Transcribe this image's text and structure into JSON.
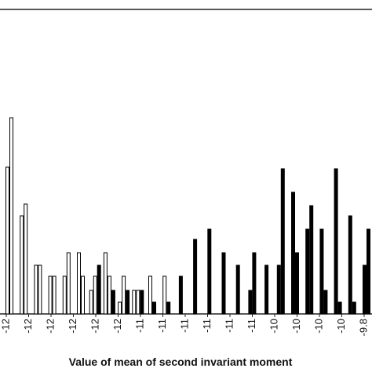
{
  "chart_data": {
    "type": "bar",
    "title": "Value of mean of second invariant moment",
    "x_tick_labels": [
      "-12",
      "-12",
      "-12",
      "-12",
      "-12",
      "-12",
      "-11",
      "-11",
      "-11",
      "-11",
      "-11",
      "-11",
      "-10",
      "-10",
      "-10",
      "-10",
      "-9.8"
    ],
    "categories": [
      null,
      null,
      null,
      null,
      null,
      null,
      null,
      null,
      null,
      null,
      null,
      null,
      null,
      null,
      null,
      null,
      null,
      null,
      null,
      null,
      null,
      null,
      null,
      null,
      null,
      null
    ],
    "ylim": [
      0,
      38.8
    ],
    "series": [
      {
        "color": "#ffffff",
        "values": [
          18.7,
          12.5,
          6.2,
          4.8,
          4.8,
          7.8,
          3.0,
          7.8,
          1.5,
          3.0,
          4.8,
          4.8,
          null,
          null,
          null,
          null,
          null,
          null,
          null,
          null,
          null,
          null,
          null,
          null,
          null,
          null
        ]
      },
      {
        "color": "#ffffff",
        "values": [
          25.0,
          14.0,
          6.2,
          4.8,
          7.8,
          4.8,
          4.8,
          4.8,
          4.8,
          3.0,
          null,
          null,
          null,
          null,
          null,
          null,
          null,
          null,
          null,
          null,
          null,
          null,
          null,
          null,
          null,
          null
        ]
      },
      {
        "color": "#000000",
        "values": [
          null,
          null,
          null,
          null,
          null,
          null,
          6.2,
          3.0,
          3.0,
          3.0,
          1.5,
          1.5,
          4.8,
          9.5,
          10.8,
          7.8,
          6.2,
          3.0,
          6.2,
          6.2,
          15.5,
          10.8,
          10.8,
          18.5,
          12.5,
          6.2
        ]
      },
      {
        "color": "#000000",
        "values": [
          null,
          null,
          null,
          null,
          null,
          null,
          null,
          null,
          null,
          null,
          null,
          null,
          null,
          null,
          null,
          null,
          null,
          7.8,
          null,
          18.5,
          7.8,
          13.8,
          3.0,
          1.5,
          1.5,
          10.8
        ]
      }
    ]
  }
}
